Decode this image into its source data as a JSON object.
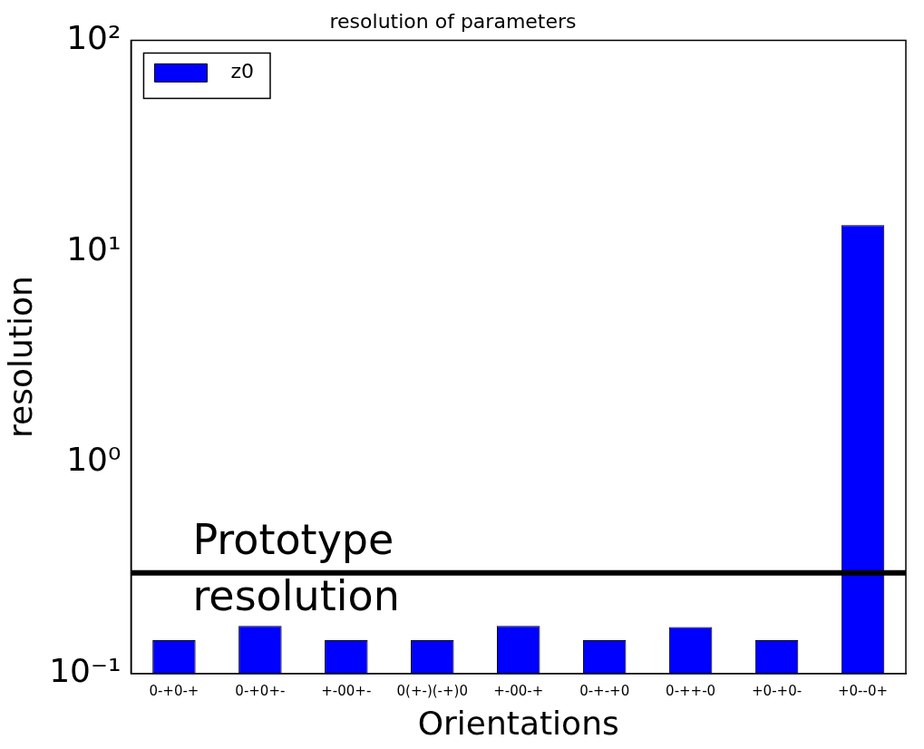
{
  "chart_data": {
    "type": "bar",
    "title": "resolution of parameters",
    "xlabel": "Orientations",
    "ylabel": "resolution",
    "categories": [
      "0-+0-+",
      "0-+0+-",
      "+-00+-",
      "0(+-)(-+)0",
      "+-00-+",
      "0-+-+0",
      "0-++-0",
      "+0-+0-",
      "+0--0+"
    ],
    "series": [
      {
        "name": "z0",
        "color": "#0000ff",
        "values": [
          0.144,
          0.168,
          0.144,
          0.144,
          0.168,
          0.144,
          0.166,
          0.144,
          13.3
        ]
      }
    ],
    "log": true,
    "ylim": [
      0.1,
      100
    ],
    "yticks": [
      {
        "value": 0.1,
        "label": "10⁻¹"
      },
      {
        "value": 1,
        "label": "10⁰"
      },
      {
        "value": 10,
        "label": "10¹"
      },
      {
        "value": 100,
        "label": "10²"
      }
    ],
    "ref_lines": [
      {
        "axis": "y",
        "value": 0.3,
        "label": "Prototype resolution",
        "color": "#000000"
      }
    ],
    "legend": "top left",
    "grid": false
  }
}
